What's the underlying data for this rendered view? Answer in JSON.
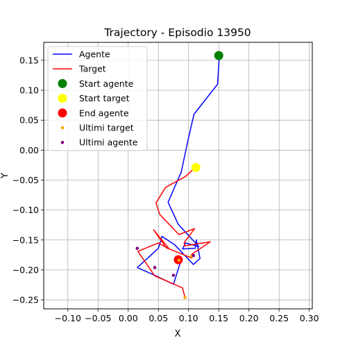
{
  "chart_data": {
    "type": "line",
    "title": "Trajectory - Episodio 13950",
    "xlabel": "X",
    "ylabel": "Y",
    "xlim": [
      -0.14,
      0.305
    ],
    "ylim": [
      -0.265,
      0.18
    ],
    "xticks": [
      -0.1,
      -0.05,
      0.0,
      0.05,
      0.1,
      0.15,
      0.2,
      0.25,
      0.3
    ],
    "xtick_labels": [
      "−0.10",
      "−0.05",
      "0.00",
      "0.05",
      "0.10",
      "0.15",
      "0.20",
      "0.25",
      "0.30"
    ],
    "yticks": [
      0.15,
      0.1,
      0.05,
      0.0,
      -0.05,
      -0.1,
      -0.15,
      -0.2,
      -0.25
    ],
    "ytick_labels": [
      "0.15",
      "0.10",
      "0.05",
      "0.00",
      "−0.05",
      "−0.10",
      "−0.15",
      "−0.20",
      "−0.25"
    ],
    "grid": true,
    "legend_position": "top-left",
    "series": [
      {
        "name": "Agente",
        "kind": "line",
        "color": "#0000ff",
        "x": [
          0.151,
          0.148,
          0.109,
          0.098,
          0.088,
          0.066,
          0.083,
          0.117,
          0.095,
          0.09,
          0.111,
          0.113,
          0.119,
          0.108,
          0.077,
          0.056,
          0.05,
          0.015,
          0.044,
          0.075,
          0.088
        ],
        "y": [
          0.158,
          0.11,
          0.06,
          0.012,
          -0.036,
          -0.087,
          -0.124,
          -0.161,
          -0.155,
          -0.165,
          -0.164,
          -0.15,
          -0.181,
          -0.191,
          -0.158,
          -0.144,
          -0.164,
          -0.196,
          -0.209,
          -0.224,
          -0.182
        ]
      },
      {
        "name": "Target",
        "kind": "line",
        "color": "#ff0000",
        "x": [
          0.111,
          0.095,
          0.062,
          0.046,
          0.052,
          0.084,
          0.11,
          0.093,
          0.093,
          0.136,
          0.105,
          0.105,
          0.063,
          0.042,
          0.068,
          0.05,
          0.016,
          0.044,
          0.09,
          0.094
        ],
        "y": [
          -0.029,
          -0.044,
          -0.062,
          -0.088,
          -0.107,
          -0.141,
          -0.131,
          -0.154,
          -0.16,
          -0.153,
          -0.174,
          -0.18,
          -0.163,
          -0.133,
          -0.165,
          -0.155,
          -0.169,
          -0.21,
          -0.23,
          -0.246
        ]
      },
      {
        "name": "Start agente",
        "kind": "marker",
        "color": "#008000",
        "size": "large",
        "x": [
          0.15
        ],
        "y": [
          0.158
        ]
      },
      {
        "name": "Start target",
        "kind": "marker",
        "color": "#ffff00",
        "size": "large",
        "x": [
          0.112
        ],
        "y": [
          -0.029
        ]
      },
      {
        "name": "End agente",
        "kind": "marker",
        "color": "#ff0000",
        "size": "large",
        "x": [
          0.083
        ],
        "y": [
          -0.183
        ]
      },
      {
        "name": "Ultimi target",
        "kind": "marker",
        "color": "#ffa500",
        "size": "small",
        "x": [
          0.094,
          0.105,
          0.084
        ],
        "y": [
          -0.246,
          -0.177,
          -0.184
        ]
      },
      {
        "name": "Ultimi agente",
        "kind": "marker",
        "color": "#800080",
        "size": "small",
        "x": [
          0.015,
          0.044,
          0.075,
          0.108
        ],
        "y": [
          -0.164,
          -0.196,
          -0.209,
          -0.176
        ]
      }
    ]
  }
}
